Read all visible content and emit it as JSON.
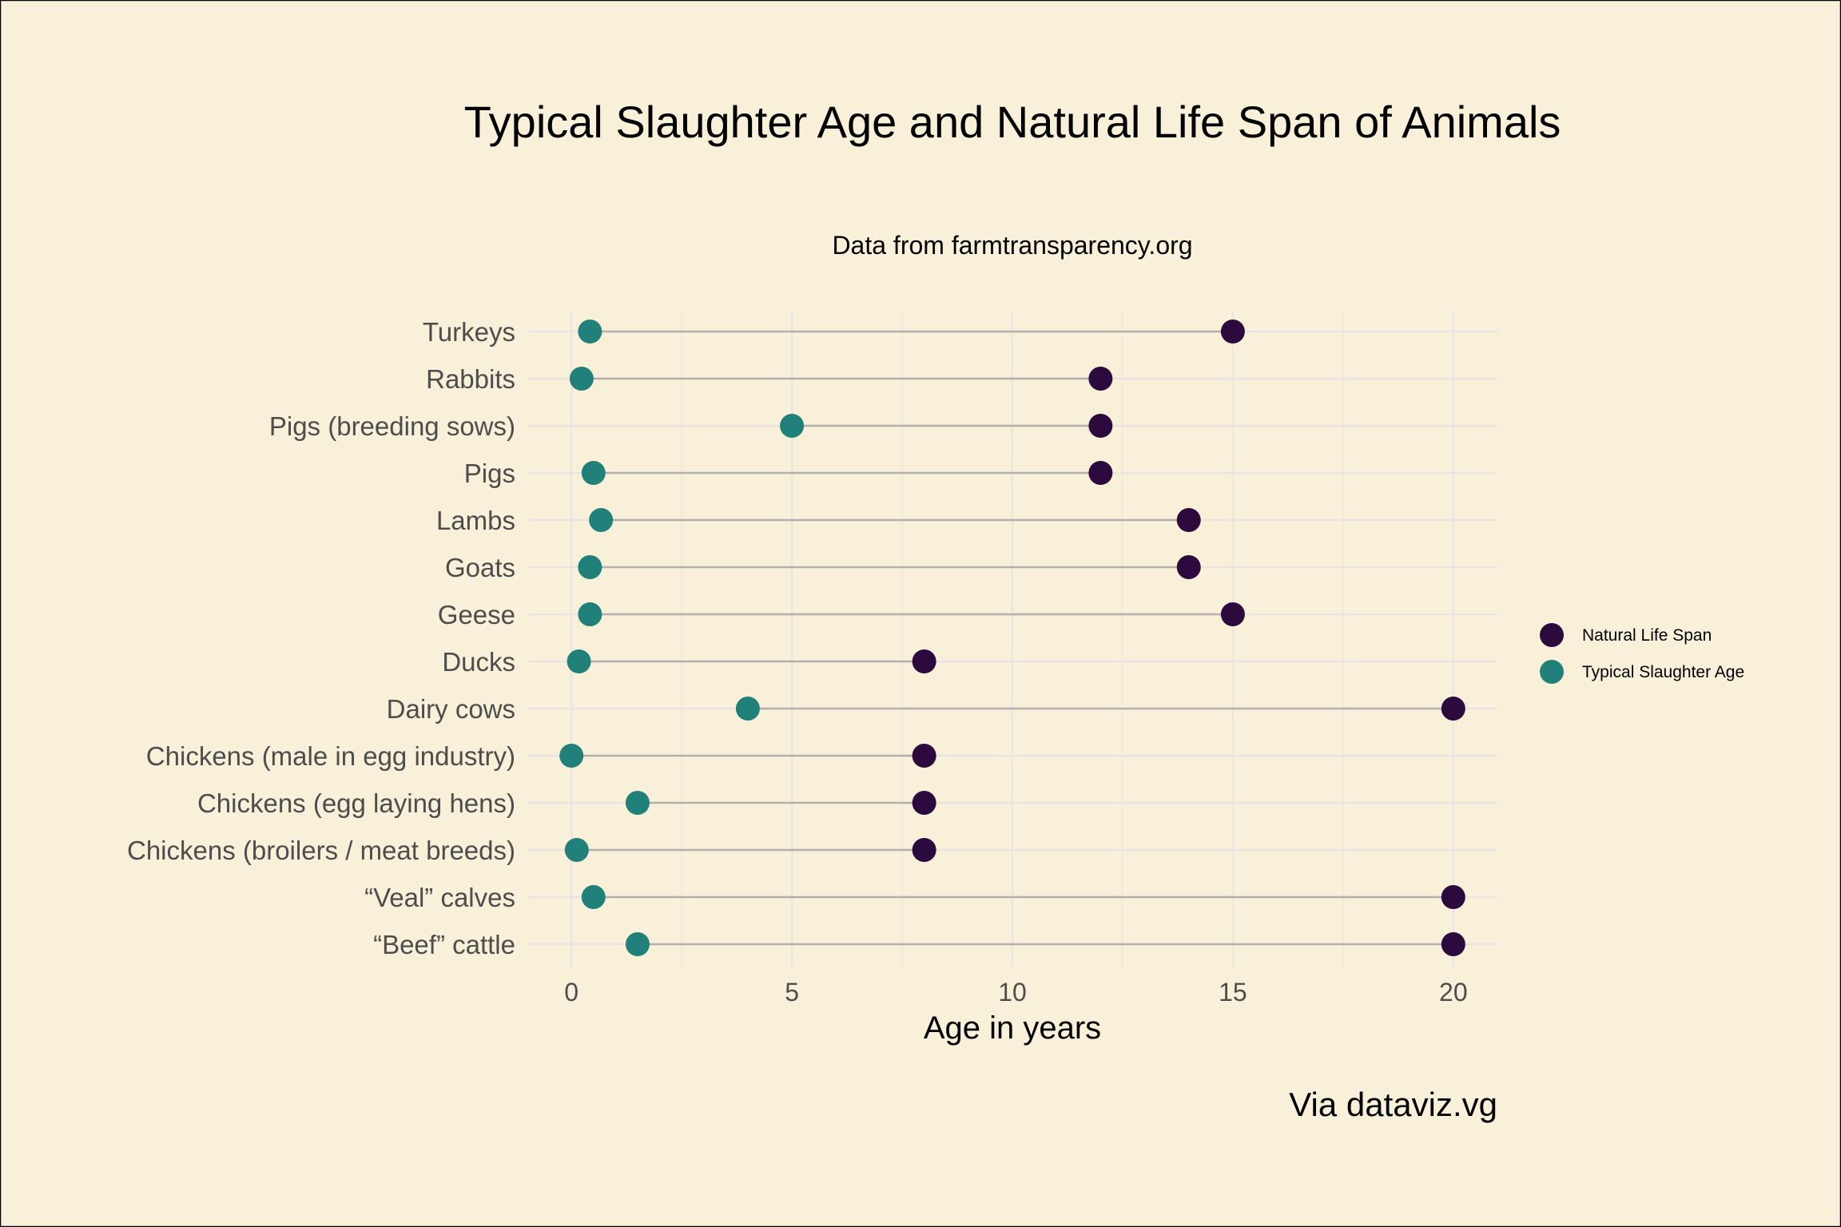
{
  "chart_data": {
    "type": "dumbbell",
    "title": "Typical Slaughter Age and Natural Life Span of Animals",
    "subtitle": "Data from farmtransparency.org",
    "xlabel": "Age in years",
    "ylabel": "",
    "caption": "Via dataviz.vg",
    "xlim": [
      -1,
      21
    ],
    "xticks": [
      0,
      5,
      10,
      15,
      20
    ],
    "grid": true,
    "legend_position": "right",
    "categories": [
      "Turkeys",
      "Rabbits",
      "Pigs (breeding sows)",
      "Pigs",
      "Lambs",
      "Goats",
      "Geese",
      "Ducks",
      "Dairy cows",
      "Chickens (male in egg industry)",
      "Chickens (egg laying hens)",
      "Chickens (broilers / meat breeds)",
      "“Veal” calves",
      "“Beef” cattle"
    ],
    "series": [
      {
        "name": "Natural Life Span",
        "color": "#2d0a3e",
        "values": [
          15,
          12,
          12,
          12,
          14,
          14,
          15,
          8,
          20,
          8,
          8,
          8,
          20,
          20
        ]
      },
      {
        "name": "Typical Slaughter Age",
        "color": "#21807a",
        "values": [
          0.42,
          0.23,
          5,
          0.5,
          0.67,
          0.42,
          0.42,
          0.17,
          4,
          0,
          1.5,
          0.12,
          0.5,
          1.5
        ]
      }
    ],
    "colors": {
      "background": "#f8f0d8",
      "grid": "#e9e4e4",
      "segment": "#b3b0ab"
    }
  }
}
